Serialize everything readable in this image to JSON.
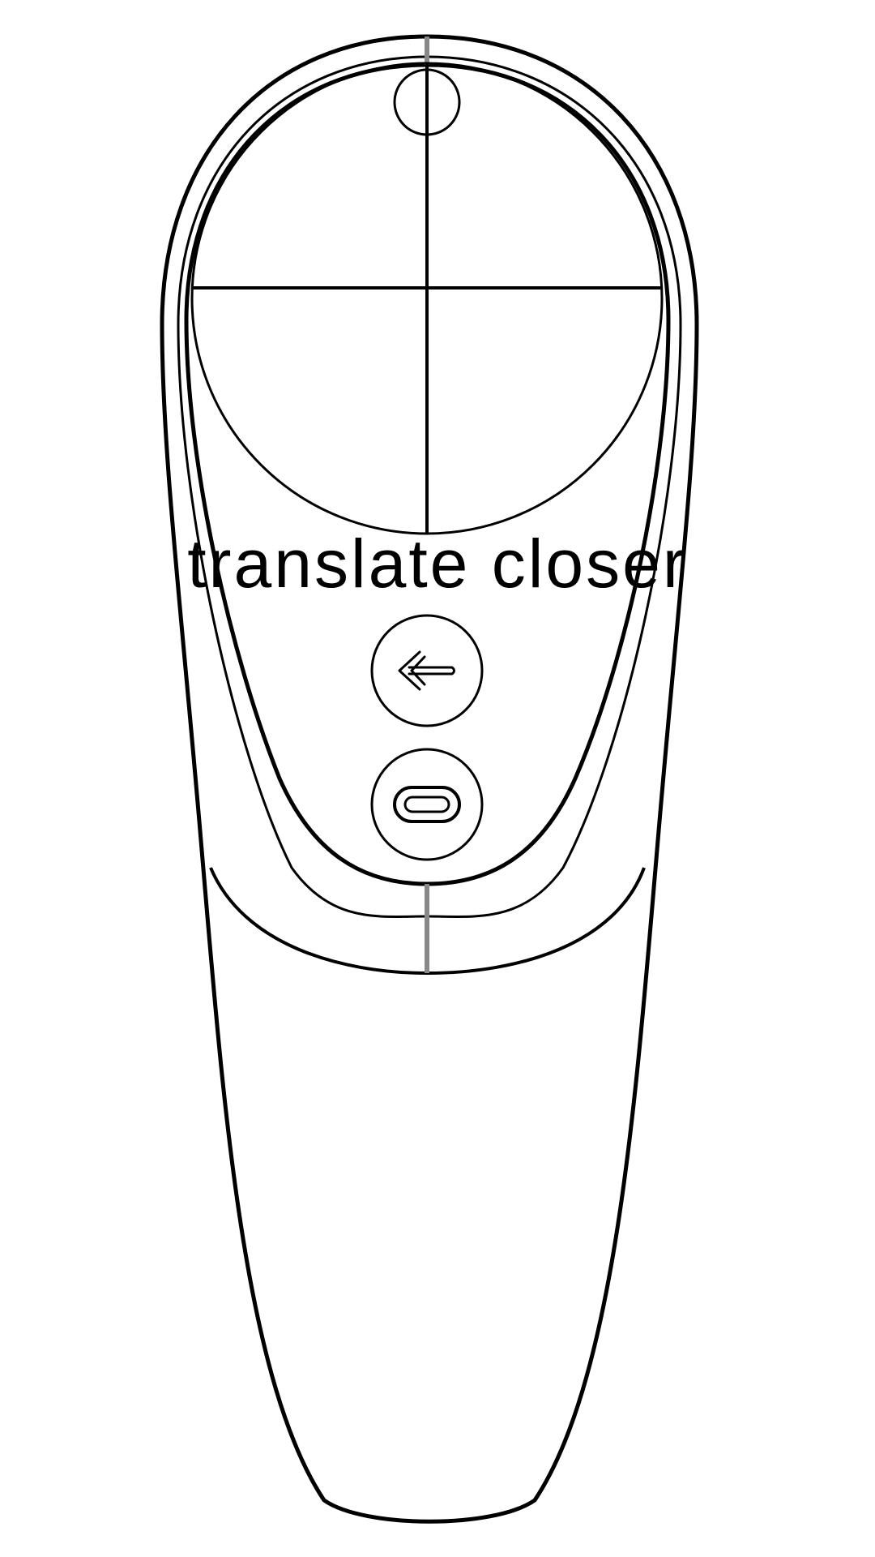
{
  "caption": {
    "text": "translate closer"
  },
  "controller": {
    "touchpad": "touchpad",
    "back_button_icon": "arrow-left-icon",
    "home_button_icon": "oculus-home-icon"
  },
  "colors": {
    "outline": "#000000",
    "seam": "#888888",
    "background": "#ffffff"
  }
}
